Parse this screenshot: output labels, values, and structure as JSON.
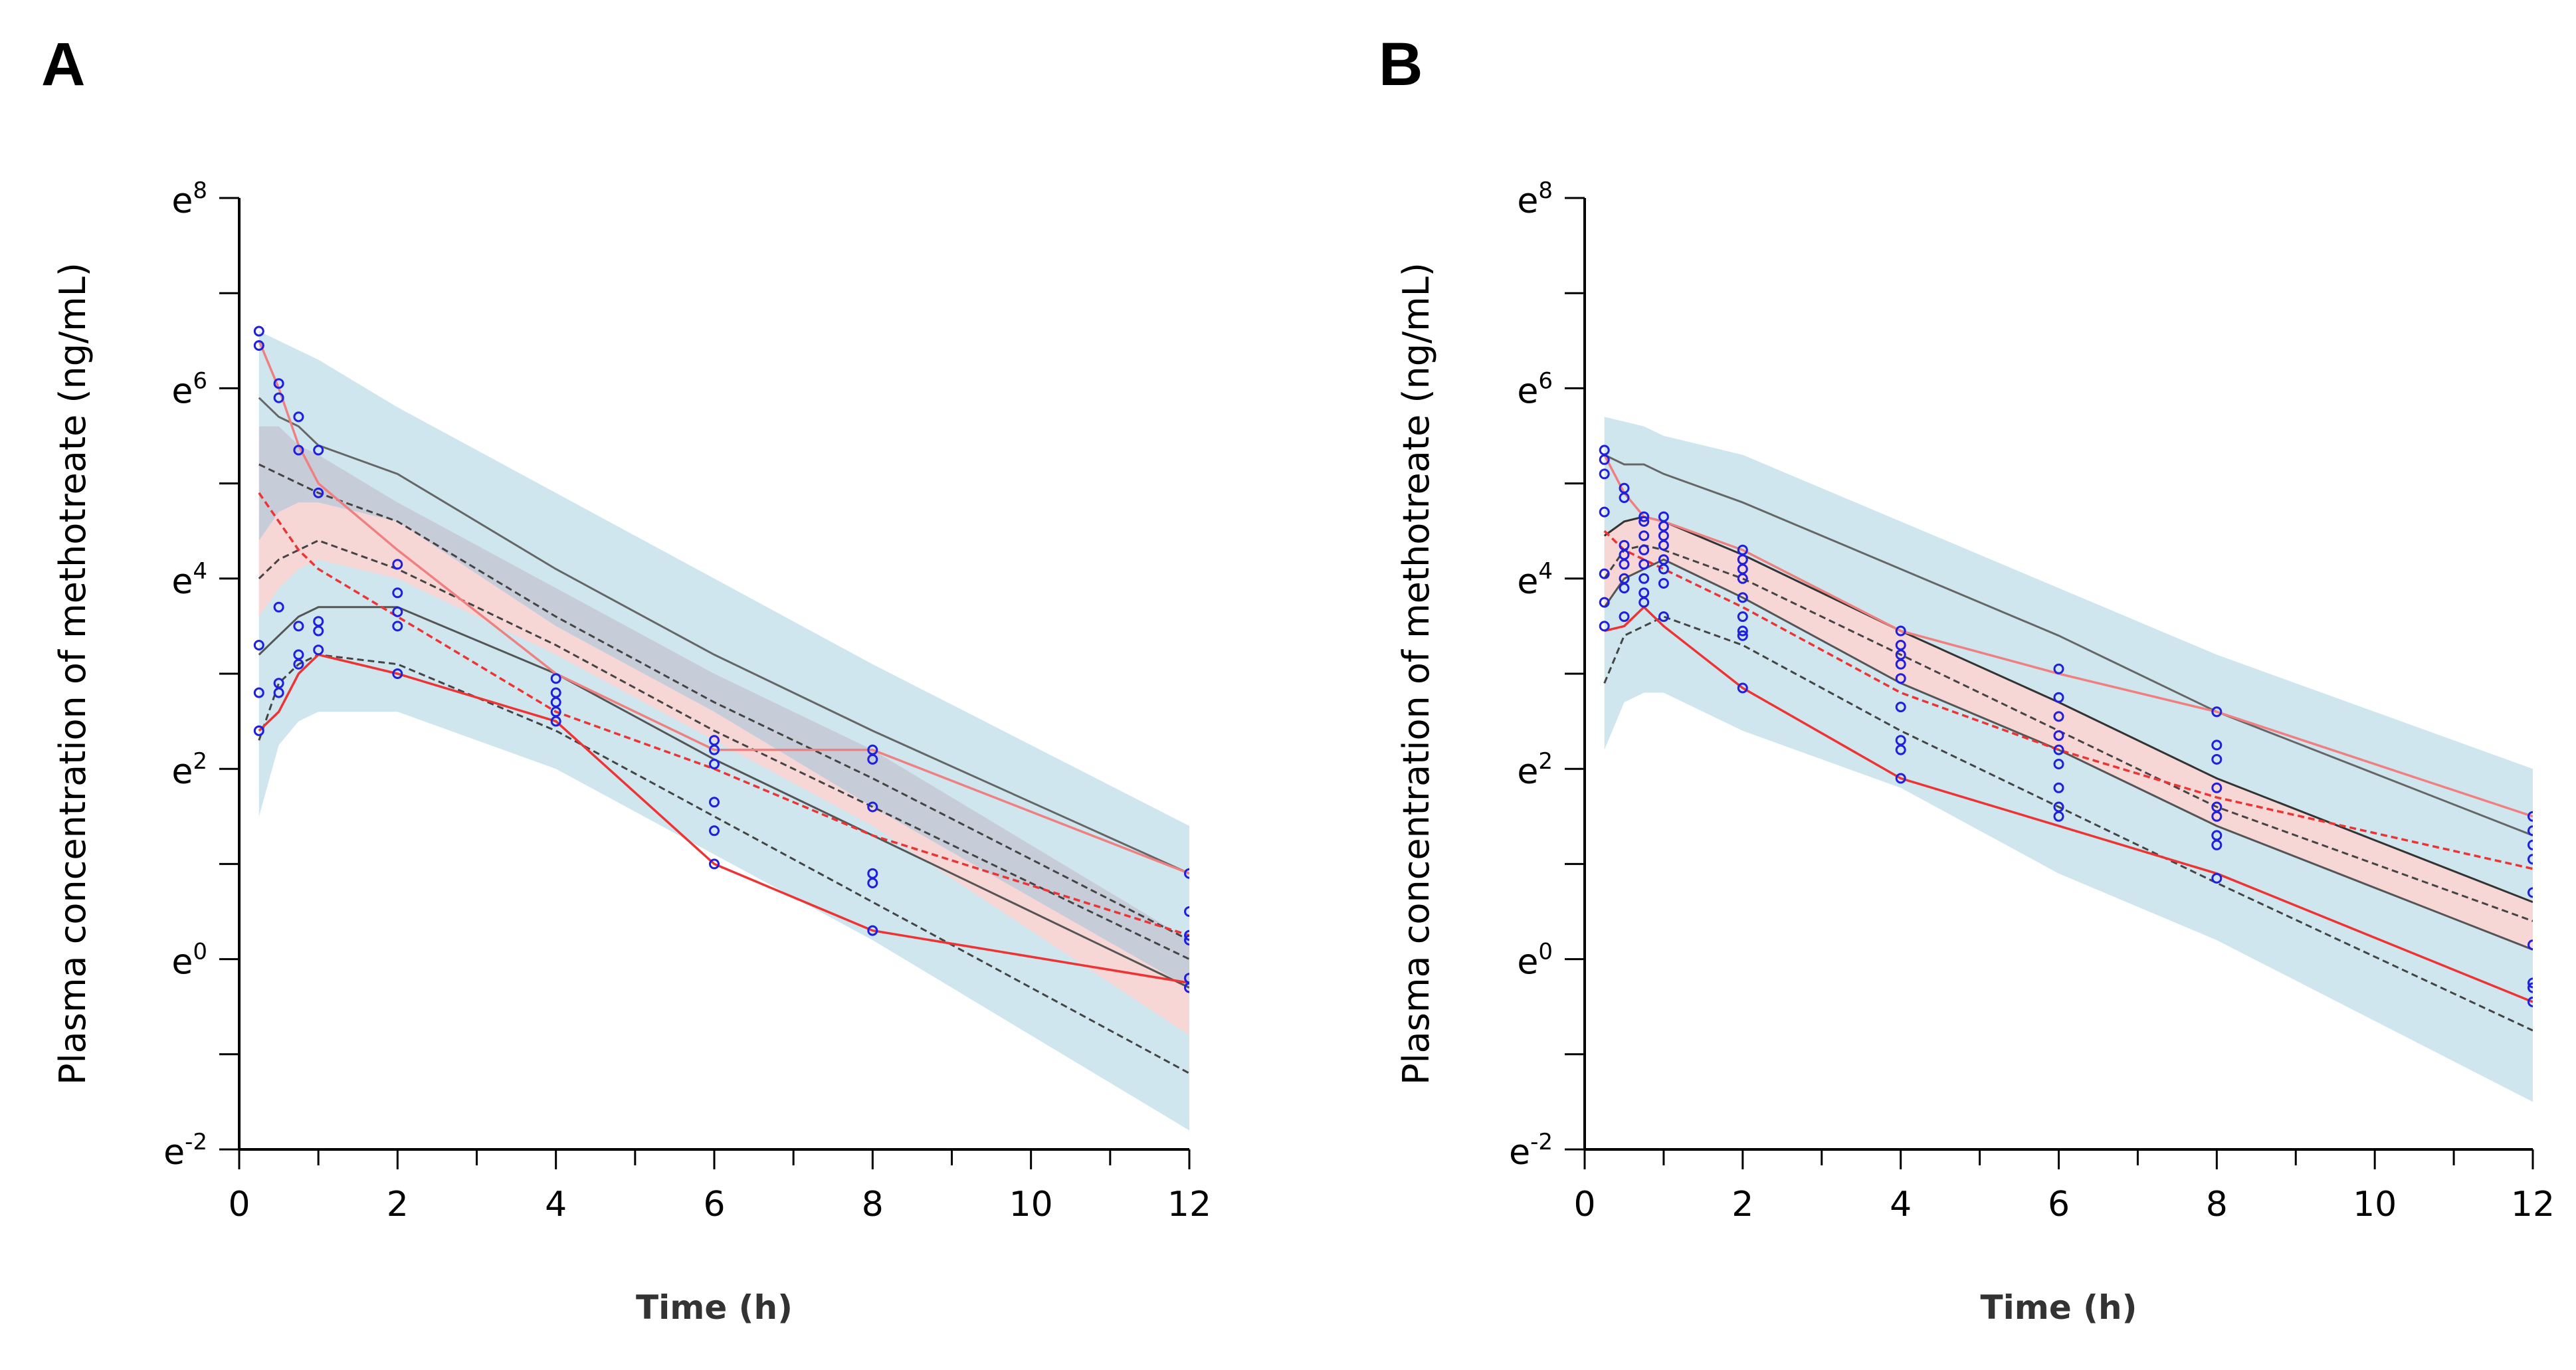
{
  "chart_data": [
    {
      "type": "line",
      "panel_label": "A",
      "xlabel": "Time (h)",
      "ylabel": "Plasma concentration of methotreate (ng/mL)",
      "xlim": [
        0,
        12
      ],
      "ylim": [
        -2,
        8
      ],
      "y_scale": "natural-log",
      "x_ticks": [
        0,
        2,
        4,
        6,
        8,
        10,
        12
      ],
      "y_ticks": [
        {
          "base": "e",
          "exp": "8",
          "value": 8
        },
        {
          "base": "e",
          "exp": "6",
          "value": 6
        },
        {
          "base": "e",
          "exp": "4",
          "value": 4
        },
        {
          "base": "e",
          "exp": "2",
          "value": 2
        },
        {
          "base": "e",
          "exp": "0",
          "value": 0
        },
        {
          "base": "e",
          "exp": "-2",
          "value": -2
        }
      ],
      "x": [
        0.25,
        0.5,
        0.75,
        1,
        2,
        4,
        6,
        8,
        12
      ],
      "bands": [
        {
          "name": "outer-interval",
          "color": "#cfe6ef",
          "upper": [
            6.6,
            6.5,
            6.4,
            6.3,
            5.8,
            4.9,
            4.0,
            3.1,
            1.4
          ],
          "lower": [
            1.5,
            2.25,
            2.5,
            2.6,
            2.6,
            2.0,
            1.1,
            0.2,
            -1.8
          ]
        },
        {
          "name": "median-interval",
          "color": "#f7d6d6",
          "upper": [
            4.4,
            4.7,
            4.8,
            4.8,
            4.6,
            3.5,
            2.6,
            1.6,
            -0.3
          ],
          "lower": [
            3.6,
            3.9,
            4.1,
            4.2,
            4.0,
            3.2,
            2.3,
            1.4,
            -0.8
          ]
        },
        {
          "name": "upper-interval",
          "color": "#c7ccd9",
          "upper": [
            5.6,
            5.6,
            5.4,
            5.3,
            4.8,
            3.9,
            3.0,
            2.2,
            0.2
          ],
          "lower": [
            4.4,
            4.7,
            4.8,
            4.8,
            4.6,
            3.5,
            2.6,
            1.6,
            -0.3
          ]
        }
      ],
      "series": [
        {
          "color": "#666666",
          "dash": false,
          "values": [
            5.9,
            5.7,
            5.6,
            5.4,
            5.1,
            4.1,
            3.2,
            2.4,
            0.9
          ]
        },
        {
          "color": "#444444",
          "dash": true,
          "values": [
            5.2,
            5.1,
            5.0,
            4.9,
            4.6,
            3.6,
            2.7,
            1.9,
            0.2
          ]
        },
        {
          "color": "#444444",
          "dash": true,
          "values": [
            4.0,
            4.2,
            4.3,
            4.4,
            4.1,
            3.3,
            2.4,
            1.6,
            0.0
          ]
        },
        {
          "color": "#555555",
          "dash": false,
          "values": [
            3.2,
            3.4,
            3.6,
            3.7,
            3.7,
            3.0,
            2.1,
            1.3,
            -0.3
          ]
        },
        {
          "color": "#444444",
          "dash": true,
          "values": [
            2.3,
            2.9,
            3.1,
            3.2,
            3.1,
            2.4,
            1.5,
            0.6,
            -1.2
          ]
        },
        {
          "color": "#ee3333",
          "dash": false,
          "values": [
            2.4,
            2.6,
            3.0,
            3.2,
            3.0,
            2.5,
            1.0,
            0.3,
            -0.25
          ]
        },
        {
          "color": "#ee3333",
          "dash": true,
          "values": [
            4.9,
            4.6,
            4.3,
            4.1,
            3.6,
            2.6,
            2.0,
            1.3,
            0.25
          ]
        },
        {
          "color": "#f08080",
          "dash": false,
          "values": [
            6.5,
            6.0,
            5.4,
            5.0,
            4.3,
            3.0,
            2.2,
            2.2,
            0.9
          ]
        }
      ],
      "observed": {
        "color": "#1f1fe0",
        "points": [
          [
            0.25,
            6.6
          ],
          [
            0.25,
            6.45
          ],
          [
            0.25,
            3.3
          ],
          [
            0.25,
            2.8
          ],
          [
            0.25,
            2.4
          ],
          [
            0.5,
            6.05
          ],
          [
            0.5,
            5.9
          ],
          [
            0.5,
            3.7
          ],
          [
            0.5,
            2.9
          ],
          [
            0.5,
            2.8
          ],
          [
            0.75,
            5.7
          ],
          [
            0.75,
            5.35
          ],
          [
            0.75,
            3.5
          ],
          [
            0.75,
            3.2
          ],
          [
            0.75,
            3.1
          ],
          [
            1,
            5.35
          ],
          [
            1,
            4.9
          ],
          [
            1,
            3.55
          ],
          [
            1,
            3.45
          ],
          [
            1,
            3.25
          ],
          [
            2,
            4.15
          ],
          [
            2,
            3.85
          ],
          [
            2,
            3.65
          ],
          [
            2,
            3.5
          ],
          [
            2,
            3.0
          ],
          [
            4,
            2.95
          ],
          [
            4,
            2.8
          ],
          [
            4,
            2.7
          ],
          [
            4,
            2.6
          ],
          [
            4,
            2.5
          ],
          [
            6,
            2.3
          ],
          [
            6,
            2.2
          ],
          [
            6,
            2.05
          ],
          [
            6,
            1.65
          ],
          [
            6,
            1.35
          ],
          [
            6,
            1.0
          ],
          [
            8,
            2.2
          ],
          [
            8,
            2.1
          ],
          [
            8,
            1.6
          ],
          [
            8,
            0.9
          ],
          [
            8,
            0.8
          ],
          [
            8,
            0.3
          ],
          [
            12,
            0.9
          ],
          [
            12,
            0.5
          ],
          [
            12,
            0.25
          ],
          [
            12,
            0.2
          ],
          [
            12,
            -0.2
          ],
          [
            12,
            -0.3
          ]
        ]
      }
    },
    {
      "type": "line",
      "panel_label": "B",
      "xlabel": "Time (h)",
      "ylabel": "Plasma concentration of methotreate (ng/mL)",
      "xlim": [
        0,
        12
      ],
      "ylim": [
        -2,
        8
      ],
      "y_scale": "natural-log",
      "x_ticks": [
        0,
        2,
        4,
        6,
        8,
        10,
        12
      ],
      "y_ticks": [
        {
          "base": "e",
          "exp": "8",
          "value": 8
        },
        {
          "base": "e",
          "exp": "6",
          "value": 6
        },
        {
          "base": "e",
          "exp": "4",
          "value": 4
        },
        {
          "base": "e",
          "exp": "2",
          "value": 2
        },
        {
          "base": "e",
          "exp": "0",
          "value": 0
        },
        {
          "base": "e",
          "exp": "-2",
          "value": -2
        }
      ],
      "x": [
        0.25,
        0.5,
        0.75,
        1,
        2,
        4,
        6,
        8,
        12
      ],
      "bands": [
        {
          "name": "outer-interval",
          "color": "#cfe6ef",
          "upper": [
            5.7,
            5.65,
            5.6,
            5.5,
            5.3,
            4.6,
            3.9,
            3.2,
            2.0
          ],
          "lower": [
            2.2,
            2.7,
            2.8,
            2.8,
            2.4,
            1.8,
            0.9,
            0.2,
            -1.5
          ]
        },
        {
          "name": "median-interval",
          "color": "#f7d6d6",
          "upper": [
            4.45,
            4.6,
            4.65,
            4.6,
            4.25,
            3.45,
            2.7,
            1.9,
            0.6
          ],
          "lower": [
            3.7,
            4.0,
            4.1,
            4.2,
            3.8,
            2.9,
            2.2,
            1.4,
            0.1
          ]
        }
      ],
      "series": [
        {
          "color": "#666666",
          "dash": false,
          "values": [
            5.3,
            5.2,
            5.2,
            5.1,
            4.8,
            4.1,
            3.4,
            2.6,
            1.3
          ]
        },
        {
          "color": "#333333",
          "dash": false,
          "values": [
            4.45,
            4.6,
            4.65,
            4.6,
            4.25,
            3.45,
            2.7,
            1.9,
            0.6
          ]
        },
        {
          "color": "#444444",
          "dash": true,
          "values": [
            4.0,
            4.3,
            4.35,
            4.3,
            4.0,
            3.2,
            2.4,
            1.6,
            0.4
          ]
        },
        {
          "color": "#555555",
          "dash": false,
          "values": [
            3.7,
            4.0,
            4.1,
            4.2,
            3.8,
            2.9,
            2.2,
            1.4,
            0.1
          ]
        },
        {
          "color": "#444444",
          "dash": true,
          "values": [
            2.9,
            3.4,
            3.5,
            3.6,
            3.3,
            2.4,
            1.6,
            0.8,
            -0.75
          ]
        },
        {
          "color": "#ee3333",
          "dash": false,
          "values": [
            3.45,
            3.5,
            3.7,
            3.5,
            2.85,
            1.9,
            1.4,
            0.9,
            -0.45
          ]
        },
        {
          "color": "#ee3333",
          "dash": true,
          "values": [
            4.5,
            4.3,
            4.2,
            4.1,
            3.7,
            2.8,
            2.2,
            1.7,
            0.95
          ]
        },
        {
          "color": "#f08080",
          "dash": false,
          "values": [
            5.3,
            4.9,
            4.65,
            4.6,
            4.3,
            3.45,
            3.0,
            2.6,
            1.5
          ]
        }
      ],
      "observed": {
        "color": "#1f1fe0",
        "points": [
          [
            0.25,
            5.35
          ],
          [
            0.25,
            5.25
          ],
          [
            0.25,
            5.1
          ],
          [
            0.25,
            4.7
          ],
          [
            0.25,
            4.05
          ],
          [
            0.25,
            3.75
          ],
          [
            0.25,
            3.5
          ],
          [
            0.5,
            4.95
          ],
          [
            0.5,
            4.85
          ],
          [
            0.5,
            4.35
          ],
          [
            0.5,
            4.25
          ],
          [
            0.5,
            4.15
          ],
          [
            0.5,
            4.0
          ],
          [
            0.5,
            3.9
          ],
          [
            0.5,
            3.6
          ],
          [
            0.75,
            4.65
          ],
          [
            0.75,
            4.6
          ],
          [
            0.75,
            4.45
          ],
          [
            0.75,
            4.3
          ],
          [
            0.75,
            4.15
          ],
          [
            0.75,
            4.0
          ],
          [
            0.75,
            3.85
          ],
          [
            0.75,
            3.75
          ],
          [
            1,
            4.65
          ],
          [
            1,
            4.55
          ],
          [
            1,
            4.45
          ],
          [
            1,
            4.35
          ],
          [
            1,
            4.2
          ],
          [
            1,
            4.1
          ],
          [
            1,
            3.95
          ],
          [
            1,
            3.6
          ],
          [
            2,
            4.3
          ],
          [
            2,
            4.2
          ],
          [
            2,
            4.1
          ],
          [
            2,
            4.0
          ],
          [
            2,
            3.8
          ],
          [
            2,
            3.6
          ],
          [
            2,
            3.45
          ],
          [
            2,
            3.4
          ],
          [
            2,
            2.85
          ],
          [
            4,
            3.45
          ],
          [
            4,
            3.3
          ],
          [
            4,
            3.2
          ],
          [
            4,
            3.1
          ],
          [
            4,
            2.95
          ],
          [
            4,
            2.65
          ],
          [
            4,
            2.3
          ],
          [
            4,
            2.2
          ],
          [
            4,
            1.9
          ],
          [
            6,
            3.05
          ],
          [
            6,
            2.75
          ],
          [
            6,
            2.55
          ],
          [
            6,
            2.35
          ],
          [
            6,
            2.2
          ],
          [
            6,
            2.05
          ],
          [
            6,
            1.8
          ],
          [
            6,
            1.6
          ],
          [
            6,
            1.5
          ],
          [
            8,
            2.6
          ],
          [
            8,
            2.25
          ],
          [
            8,
            2.1
          ],
          [
            8,
            1.8
          ],
          [
            8,
            1.6
          ],
          [
            8,
            1.5
          ],
          [
            8,
            1.3
          ],
          [
            8,
            1.2
          ],
          [
            8,
            0.85
          ],
          [
            12,
            1.5
          ],
          [
            12,
            1.35
          ],
          [
            12,
            1.2
          ],
          [
            12,
            1.05
          ],
          [
            12,
            0.7
          ],
          [
            12,
            0.15
          ],
          [
            12,
            -0.25
          ],
          [
            12,
            -0.3
          ],
          [
            12,
            -0.45
          ]
        ]
      }
    }
  ]
}
